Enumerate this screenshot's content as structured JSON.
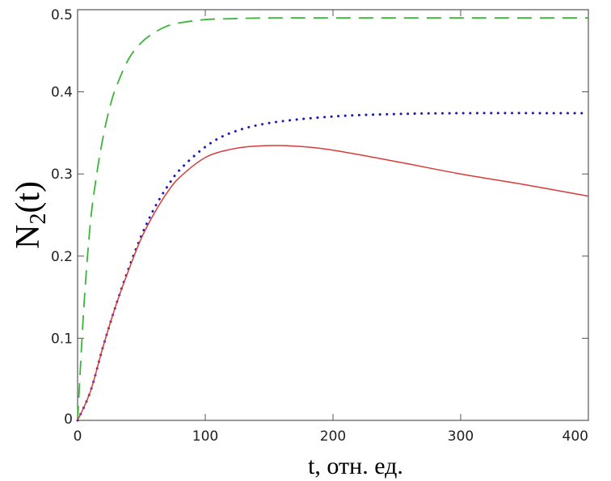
{
  "chart_data": {
    "type": "line",
    "title": "",
    "xlabel": "t, отн. ед.",
    "ylabel_main": "N",
    "ylabel_sub": "2",
    "ylabel_tail": "(t)",
    "xlim": [
      0,
      400
    ],
    "ylim": [
      0,
      0.5
    ],
    "x_ticks": [
      0,
      100,
      200,
      300,
      400
    ],
    "y_ticks": [
      0,
      0.1,
      0.2,
      0.3,
      0.4,
      0.5
    ],
    "x_tick_labels": [
      "0",
      "100",
      "200",
      "300",
      "400"
    ],
    "y_tick_labels": [
      "0",
      "0.1",
      "0.2",
      "0.3",
      "0.4",
      "0.5"
    ],
    "grid": false,
    "series": [
      {
        "style": "dashed",
        "color": "#3cb43c",
        "x": [
          0,
          5,
          10,
          15,
          20,
          25,
          30,
          40,
          50,
          60,
          70,
          80,
          100,
          120,
          150,
          200,
          300,
          400
        ],
        "y": [
          0,
          0.14,
          0.24,
          0.3,
          0.345,
          0.38,
          0.405,
          0.44,
          0.46,
          0.472,
          0.48,
          0.484,
          0.488,
          0.489,
          0.49,
          0.49,
          0.49,
          0.49
        ]
      },
      {
        "style": "dotted",
        "color": "#1a1ab0",
        "x": [
          0,
          10,
          20,
          30,
          40,
          50,
          60,
          70,
          80,
          100,
          120,
          150,
          200,
          250,
          300,
          400
        ],
        "y": [
          0,
          0.035,
          0.09,
          0.14,
          0.185,
          0.225,
          0.258,
          0.284,
          0.305,
          0.333,
          0.35,
          0.362,
          0.37,
          0.373,
          0.374,
          0.374
        ]
      },
      {
        "style": "solid",
        "color": "#d93b3b",
        "x": [
          0,
          10,
          20,
          30,
          40,
          50,
          60,
          70,
          80,
          100,
          120,
          140,
          170,
          200,
          250,
          300,
          350,
          400
        ],
        "y": [
          0,
          0.035,
          0.09,
          0.14,
          0.183,
          0.222,
          0.252,
          0.277,
          0.296,
          0.32,
          0.33,
          0.334,
          0.334,
          0.329,
          0.315,
          0.3,
          0.287,
          0.273
        ]
      }
    ]
  }
}
